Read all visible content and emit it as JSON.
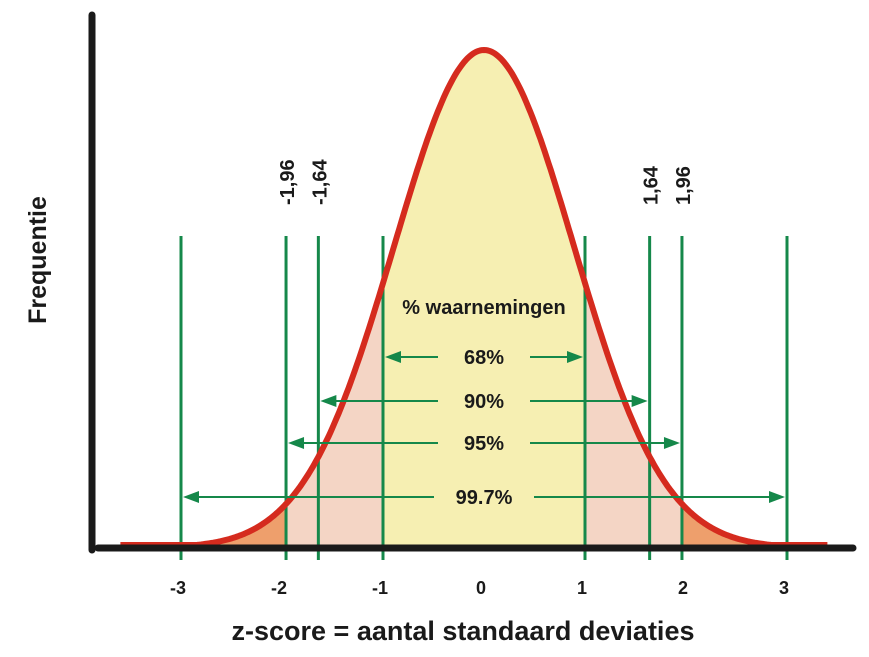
{
  "chart_data": {
    "type": "area",
    "distribution": "normal",
    "xlabel": "z-score = aantal standaard deviaties",
    "ylabel": "Frequentie",
    "x_ticks": [
      "-3",
      "-2",
      "-1",
      "0",
      "1",
      "2",
      "3"
    ],
    "x_tick_values": [
      -3,
      -2,
      -1,
      0,
      1,
      2,
      3
    ],
    "critical_values": [
      {
        "label": "-1,96",
        "z": -1.96
      },
      {
        "label": "-1,64",
        "z": -1.64
      },
      {
        "label": "1,64",
        "z": 1.64
      },
      {
        "label": "1,96",
        "z": 1.96
      }
    ],
    "annotation_title": "% waarnemingen",
    "intervals": [
      {
        "label": "68%",
        "from": -1,
        "to": 1
      },
      {
        "label": "90%",
        "from": -1.64,
        "to": 1.64
      },
      {
        "label": "95%",
        "from": -1.96,
        "to": 1.96
      },
      {
        "label": "99.7%",
        "from": -3,
        "to": 3
      }
    ],
    "xlim": [
      -3.6,
      3.4
    ],
    "grid": false,
    "colors": {
      "curve": "#d52b1e",
      "center_fill": "#f6efb2",
      "mid_fill": "#f4d5c5",
      "tail_fill": "#ee9f6c",
      "guides": "#15884a",
      "axes": "#1a1a1a"
    }
  }
}
